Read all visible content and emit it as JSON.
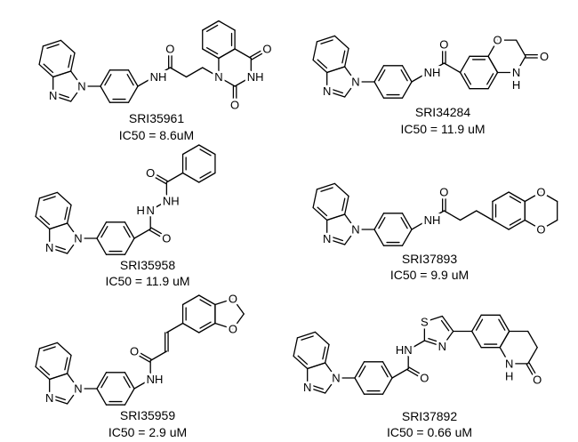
{
  "compounds": [
    {
      "name": "SRI35961",
      "activity": "IC50 = 8.6uM",
      "atoms": [
        "N",
        "N",
        "NH",
        "O",
        "N",
        "O",
        "NH",
        "O"
      ]
    },
    {
      "name": "SRI34284",
      "activity": "IC50 = 11.9 uM",
      "atoms": [
        "N",
        "N",
        "NH",
        "O",
        "O",
        "N",
        "H",
        "O"
      ]
    },
    {
      "name": "SRI35958",
      "activity": "IC50 = 11.9 uM",
      "atoms": [
        "N",
        "N",
        "O",
        "N",
        "H",
        "NH",
        "O"
      ]
    },
    {
      "name": "SRI37893",
      "activity": "IC50 = 9.9 uM",
      "atoms": [
        "N",
        "N",
        "NH",
        "O",
        "O",
        "O"
      ]
    },
    {
      "name": "SRI35959",
      "activity": "IC50 = 2.9 uM",
      "atoms": [
        "N",
        "N",
        "NH",
        "O",
        "O",
        "O"
      ]
    },
    {
      "name": "SRI37892",
      "activity": "IC50 = 0.66 uM",
      "atoms": [
        "N",
        "N",
        "O",
        "HN",
        "S",
        "N",
        "N",
        "H",
        "O"
      ]
    }
  ]
}
